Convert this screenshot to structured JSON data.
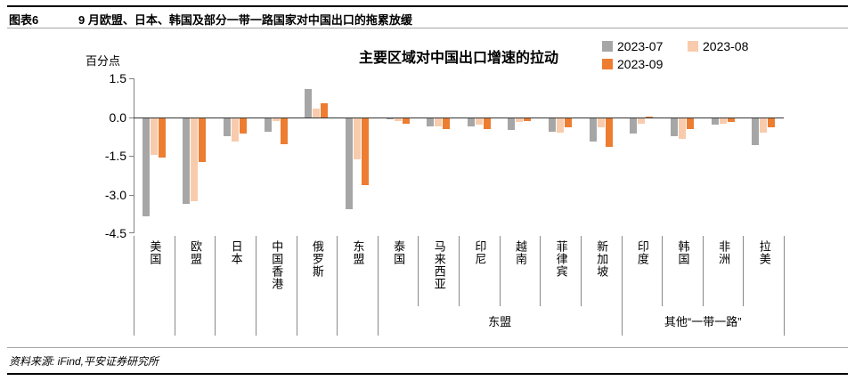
{
  "header": {
    "label": "图表6",
    "title": "9 月欧盟、日本、韩国及部分一带一路国家对中国出口的拖累放缓"
  },
  "footer": {
    "source": "资料来源: iFind,平安证券研究所"
  },
  "colors": {
    "series_2023_07": "#A6A6A6",
    "series_2023_08": "#F8CBAD",
    "series_2023_09": "#ED7D31",
    "axis_line": "#808080",
    "rule_black": "#000000"
  },
  "chart_data": {
    "type": "bar",
    "title": "主要区域对中国出口增速的拉动",
    "ylabel": "百分点",
    "xlabel": "",
    "ylim": [
      -4.5,
      1.5
    ],
    "yticks": [
      1.5,
      0,
      -1.5,
      -3,
      -4.5
    ],
    "ytick_labels": [
      "1.5",
      "0.0",
      "-1.5",
      "-3.0",
      "-4.5"
    ],
    "grid": false,
    "legend_position": "top-right",
    "categories": [
      "美国",
      "欧盟",
      "日本",
      "中国香港",
      "俄罗斯",
      "东盟",
      "泰国",
      "马来西亚",
      "印尼",
      "越南",
      "菲律宾",
      "新加坡",
      "印度",
      "韩国",
      "非洲",
      "拉美"
    ],
    "series": [
      {
        "name": "2023-07",
        "color": "#A6A6A6",
        "values": [
          -3.8,
          -3.3,
          -0.7,
          -0.5,
          1.1,
          -3.5,
          -0.05,
          -0.3,
          -0.3,
          -0.45,
          -0.5,
          -0.9,
          -0.6,
          -0.7,
          -0.25,
          -1.05
        ]
      },
      {
        "name": "2023-08",
        "color": "#F8CBAD",
        "values": [
          -1.4,
          -3.2,
          -0.9,
          -0.1,
          0.35,
          -1.6,
          -0.1,
          -0.3,
          -0.25,
          -0.15,
          -0.55,
          -0.35,
          -0.2,
          -0.8,
          -0.2,
          -0.55
        ]
      },
      {
        "name": "2023-09",
        "color": "#ED7D31",
        "values": [
          -1.5,
          -1.7,
          -0.6,
          -1.0,
          0.55,
          -2.6,
          -0.2,
          -0.4,
          -0.4,
          -0.1,
          -0.35,
          -1.1,
          0.05,
          -0.4,
          -0.15,
          -0.35
        ]
      }
    ],
    "group_row": [
      {
        "label": "",
        "span": 1
      },
      {
        "label": "",
        "span": 1
      },
      {
        "label": "",
        "span": 1
      },
      {
        "label": "",
        "span": 1
      },
      {
        "label": "",
        "span": 1
      },
      {
        "label": "",
        "span": 1
      },
      {
        "label": "东盟",
        "span": 6
      },
      {
        "label": "其他“一带一路”",
        "span": 4
      }
    ]
  }
}
